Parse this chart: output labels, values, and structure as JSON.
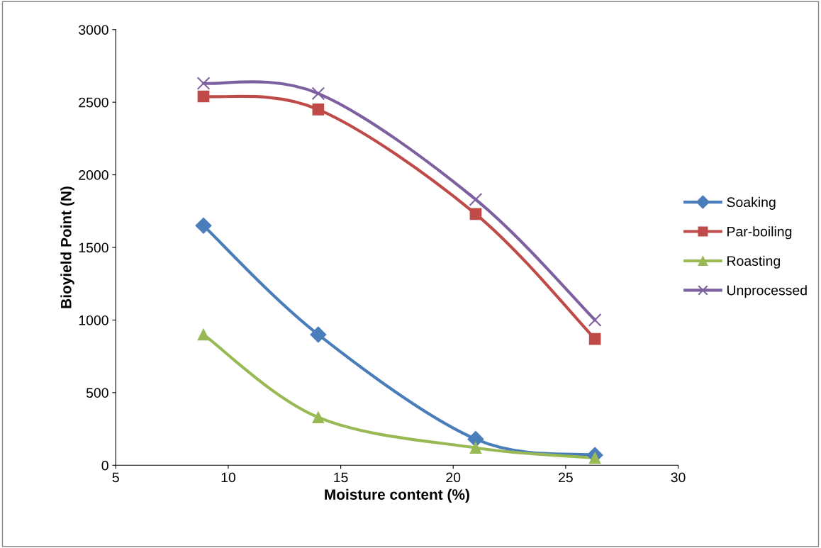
{
  "chart_data": {
    "type": "line",
    "xlabel": "Moisture content (%)",
    "ylabel": "Bioyield Point (N)",
    "x": [
      8.9,
      14.0,
      21.0,
      26.3
    ],
    "series": [
      {
        "name": "Soaking",
        "color": "#4a7ebb",
        "marker": "diamond",
        "values": [
          1650,
          900,
          180,
          70
        ]
      },
      {
        "name": "Par-boiling",
        "color": "#be4b48",
        "marker": "square",
        "values": [
          2540,
          2450,
          1730,
          870
        ]
      },
      {
        "name": "Roasting",
        "color": "#98b954",
        "marker": "triangle",
        "values": [
          900,
          330,
          120,
          50
        ]
      },
      {
        "name": "Unprocessed",
        "color": "#7d60a0",
        "marker": "cross",
        "values": [
          2630,
          2560,
          1830,
          1000
        ]
      }
    ],
    "xlim": [
      5,
      30
    ],
    "xticks": [
      5,
      10,
      15,
      20,
      25,
      30
    ],
    "ylim": [
      0,
      3000
    ],
    "yticks": [
      0,
      500,
      1000,
      1500,
      2000,
      2500,
      3000
    ],
    "grid": false,
    "legend": "right",
    "line_style": "solid"
  }
}
